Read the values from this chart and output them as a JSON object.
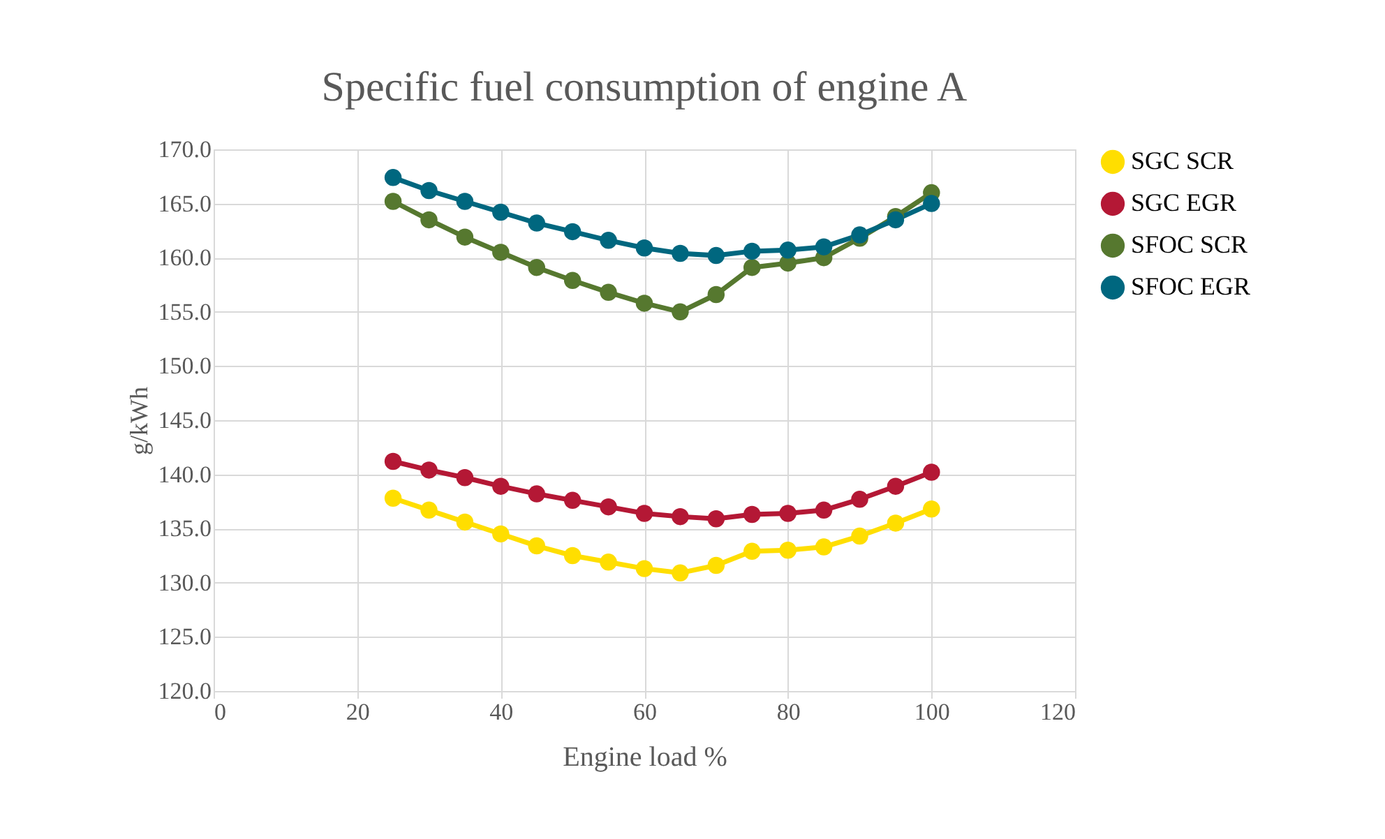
{
  "chart_data": {
    "type": "line",
    "title": "Specific fuel consumption of engine A",
    "xlabel": "Engine load %",
    "ylabel": "g/kWh",
    "x": [
      25,
      30,
      35,
      40,
      45,
      50,
      55,
      60,
      65,
      70,
      75,
      80,
      85,
      90,
      95,
      100
    ],
    "series": [
      {
        "name": "SGC SCR",
        "color": "#ffde00",
        "values": [
          137.8,
          136.7,
          135.6,
          134.5,
          133.4,
          132.5,
          131.9,
          131.3,
          130.9,
          131.6,
          132.9,
          133.0,
          133.3,
          134.3,
          135.5,
          136.8
        ]
      },
      {
        "name": "SGC EGR",
        "color": "#b41835",
        "values": [
          141.2,
          140.4,
          139.7,
          138.9,
          138.2,
          137.6,
          137.0,
          136.4,
          136.1,
          135.9,
          136.3,
          136.4,
          136.7,
          137.7,
          138.9,
          140.2
        ]
      },
      {
        "name": "SFOC SCR",
        "color": "#56782f",
        "values": [
          165.2,
          163.5,
          161.9,
          160.5,
          159.1,
          157.9,
          156.8,
          155.8,
          155.0,
          156.6,
          159.1,
          159.5,
          160.0,
          161.8,
          163.8,
          166.0
        ]
      },
      {
        "name": "SFOC EGR",
        "color": "#00677f",
        "values": [
          167.4,
          166.2,
          165.2,
          164.2,
          163.2,
          162.4,
          161.6,
          160.9,
          160.4,
          160.2,
          160.6,
          160.7,
          161.0,
          162.1,
          163.5,
          165.0
        ]
      }
    ],
    "xlim": [
      0,
      120
    ],
    "xticks": [
      0,
      20,
      40,
      60,
      80,
      100,
      120
    ],
    "ylim": [
      120,
      170
    ],
    "yticks": [
      {
        "value": 120,
        "label": "120.0"
      },
      {
        "value": 125,
        "label": "125.0"
      },
      {
        "value": 130,
        "label": "130.0"
      },
      {
        "value": 135,
        "label": "135.0"
      },
      {
        "value": 140,
        "label": "140.0"
      },
      {
        "value": 145,
        "label": "145.0"
      },
      {
        "value": 150,
        "label": "150.0"
      },
      {
        "value": 155,
        "label": "155.0"
      },
      {
        "value": 160,
        "label": "160.0"
      },
      {
        "value": 165,
        "label": "165.0"
      },
      {
        "value": 170,
        "label": "170.0"
      }
    ],
    "grid": true,
    "legend": "right",
    "marker": "circle",
    "line_style": "solid"
  }
}
